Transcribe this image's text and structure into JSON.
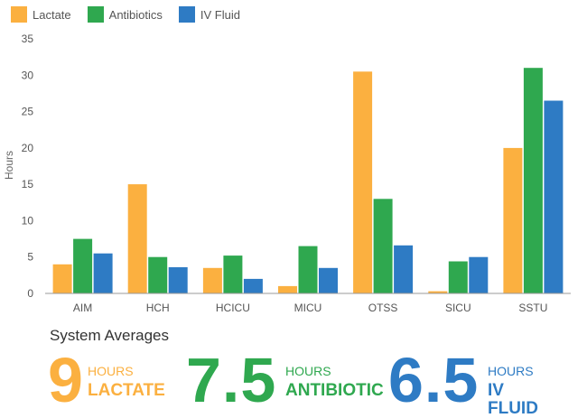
{
  "chart_data": {
    "type": "bar",
    "categories": [
      "AIM",
      "HCH",
      "HCICU",
      "MICU",
      "OTSS",
      "SICU",
      "SSTU"
    ],
    "series": [
      {
        "name": "Lactate",
        "color": "#FBB040",
        "values": [
          4,
          15,
          3.5,
          1,
          30.5,
          0.3,
          20
        ]
      },
      {
        "name": "Antibiotics",
        "color": "#2FA84F",
        "values": [
          7.5,
          5,
          5.2,
          6.5,
          13,
          4.4,
          31
        ]
      },
      {
        "name": "IV Fluid",
        "color": "#2E7BC4",
        "values": [
          5.5,
          3.6,
          2,
          3.5,
          6.6,
          5,
          26.5
        ]
      }
    ],
    "ylabel": "Hours",
    "ylim": [
      0,
      35
    ],
    "yticks": [
      0,
      5,
      10,
      15,
      20,
      25,
      30,
      35
    ],
    "grid": false,
    "legend_position": "top-left"
  },
  "summary": {
    "title": "System Averages",
    "items": [
      {
        "value": "9",
        "units": "HOURS",
        "name": "LACTATE",
        "color": "#FBB040"
      },
      {
        "value": "7.5",
        "units": "HOURS",
        "name": "ANTIBIOTIC",
        "color": "#2FA84F"
      },
      {
        "value": "6.5",
        "units": "HOURS",
        "name": "IV FLUID",
        "color": "#2E7BC4"
      }
    ]
  }
}
